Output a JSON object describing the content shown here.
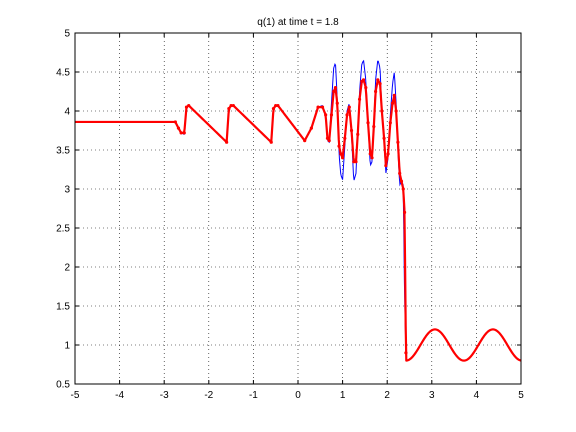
{
  "chart_data": {
    "type": "line",
    "title": "q(1)   at time t = 1.8",
    "xlabel": "",
    "ylabel": "",
    "xlim": [
      -5,
      5
    ],
    "ylim": [
      0.5,
      5
    ],
    "xticks": [
      -5,
      -4,
      -3,
      -2,
      -1,
      0,
      1,
      2,
      3,
      4,
      5
    ],
    "yticks": [
      0.5,
      1,
      1.5,
      2,
      2.5,
      3,
      3.5,
      4,
      4.5,
      5
    ],
    "grid": true,
    "colors": {
      "reference": "#0000ff",
      "samples": "#ff0000"
    },
    "series": [
      {
        "style": "blue-line",
        "x": [
          -5,
          -2.75,
          -2.68,
          -2.62,
          -2.55,
          -2.5,
          -2.45,
          -1.6,
          -1.55,
          -1.5,
          -1.45,
          -0.6,
          -0.55,
          -0.5,
          -0.45,
          0.15,
          0.3,
          0.45,
          0.55,
          0.62,
          0.66,
          0.7,
          0.75,
          0.8,
          0.84,
          0.88,
          0.92,
          0.96,
          1.0,
          1.05,
          1.1,
          1.15,
          1.2,
          1.25,
          1.3,
          1.34,
          1.38,
          1.43,
          1.47,
          1.52,
          1.57,
          1.62,
          1.66,
          1.7,
          1.74,
          1.79,
          1.84,
          1.88,
          1.93,
          1.97,
          2.02,
          2.07,
          2.12,
          2.16,
          2.2,
          2.24,
          2.28,
          2.32,
          2.36,
          2.39,
          2.42,
          3.5,
          4.7,
          5.0
        ],
        "y": [
          3.86,
          3.86,
          3.78,
          3.72,
          3.7,
          4.05,
          4.07,
          3.6,
          4.03,
          4.07,
          4.07,
          3.6,
          4.03,
          4.07,
          4.07,
          3.62,
          3.78,
          4.05,
          4.07,
          3.95,
          3.62,
          3.6,
          4.1,
          4.55,
          4.62,
          4.15,
          3.45,
          3.18,
          3.12,
          3.55,
          4.0,
          4.1,
          3.7,
          3.1,
          3.2,
          3.75,
          4.25,
          4.6,
          4.65,
          4.4,
          3.85,
          3.3,
          3.35,
          3.85,
          4.4,
          4.66,
          4.55,
          4.0,
          3.6,
          3.2,
          3.4,
          3.95,
          4.35,
          4.5,
          4.1,
          3.5,
          3.05,
          3.1,
          3.05,
          1.6,
          0.9,
          0.8,
          0.8,
          0.97
        ]
      },
      {
        "style": "red-dots",
        "x": [
          -5,
          -2.75,
          -2.68,
          -2.62,
          -2.55,
          -2.5,
          -2.45,
          -1.6,
          -1.55,
          -1.5,
          -1.45,
          -0.6,
          -0.55,
          -0.5,
          -0.45,
          0.15,
          0.3,
          0.45,
          0.55,
          0.62,
          0.66,
          0.7,
          0.75,
          0.8,
          0.84,
          0.88,
          0.92,
          0.96,
          1.0,
          1.05,
          1.1,
          1.15,
          1.2,
          1.25,
          1.3,
          1.34,
          1.38,
          1.43,
          1.47,
          1.52,
          1.57,
          1.62,
          1.66,
          1.7,
          1.74,
          1.79,
          1.84,
          1.88,
          1.93,
          1.97,
          2.02,
          2.07,
          2.12,
          2.16,
          2.2,
          2.24,
          2.28,
          2.32,
          2.36,
          2.39,
          2.42,
          3.5,
          4.7,
          5.0
        ],
        "y": [
          3.86,
          3.86,
          3.78,
          3.72,
          3.72,
          4.05,
          4.07,
          3.6,
          4.03,
          4.07,
          4.07,
          3.6,
          4.03,
          4.07,
          4.07,
          3.62,
          3.78,
          4.05,
          4.05,
          3.95,
          3.65,
          3.62,
          3.95,
          4.25,
          4.3,
          4.1,
          3.55,
          3.45,
          3.4,
          3.65,
          3.95,
          4.05,
          3.75,
          3.35,
          3.35,
          3.7,
          4.15,
          4.38,
          4.4,
          4.3,
          3.85,
          3.45,
          3.4,
          3.8,
          4.25,
          4.4,
          4.35,
          4.0,
          3.65,
          3.3,
          3.45,
          3.85,
          4.1,
          4.2,
          4.0,
          3.6,
          3.2,
          3.1,
          3.0,
          2.7,
          0.9,
          0.8,
          0.8,
          0.97
        ]
      }
    ]
  }
}
